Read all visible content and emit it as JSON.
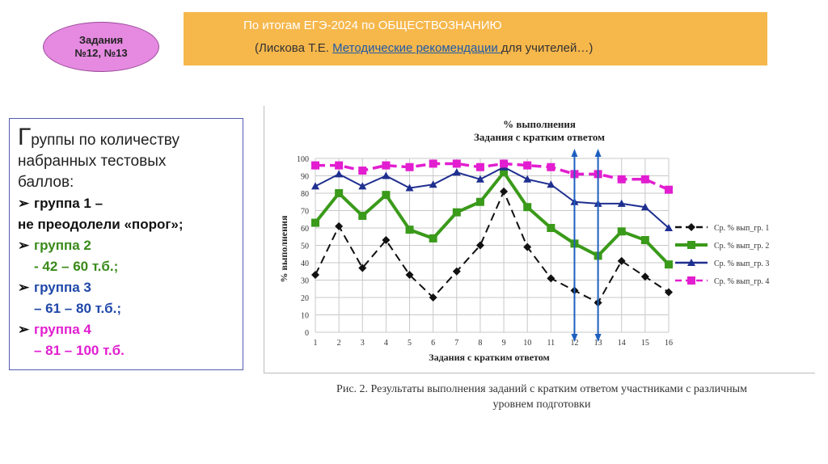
{
  "badge": {
    "line1": "Задания",
    "line2": "№12, №13"
  },
  "banner": {
    "title": "По итогам ЕГЭ-2024 по ОБЩЕСТВОЗНАНИЮ",
    "source_prefix": "(Лискова Т.Е. ",
    "source_link": "Методические рекомендации ",
    "source_suffix": "для учителей…)",
    "color": "#f6b74b"
  },
  "groups": {
    "title_initial": "Г",
    "title_rest": "руппы по количеству",
    "title_line2": "набранных тестовых",
    "title_line3": "баллов:",
    "items": [
      {
        "label": "группа 1 –",
        "detail": "не преодолели «порог»;",
        "color": "#111111"
      },
      {
        "label": "группа 2",
        "detail": "- 42 – 60 т.б.;",
        "color": "#3a8a1a"
      },
      {
        "label": "группа 3",
        "detail": "– 61 – 80 т.б.;",
        "color": "#1f47a8"
      },
      {
        "label": "группа 4",
        "detail": "– 81 – 100 т.б.",
        "color": "#e21ed0"
      }
    ]
  },
  "chart_data": {
    "type": "line",
    "title": "% выполнения",
    "subtitle": "Задания с кратким ответом",
    "xlabel": "Задания с кратким ответом",
    "ylabel": "% выполнения",
    "x": [
      1,
      2,
      3,
      4,
      5,
      6,
      7,
      8,
      9,
      10,
      11,
      12,
      13,
      14,
      15,
      16
    ],
    "ylim": [
      0,
      100
    ],
    "yticks": [
      0,
      10,
      20,
      30,
      40,
      50,
      60,
      70,
      80,
      90,
      100
    ],
    "grid": true,
    "legend": "right",
    "series": [
      {
        "name": "Ср. % вып_гр. 1",
        "color": "#111111",
        "dashed": true,
        "marker": "diamond",
        "values": [
          33,
          61,
          37,
          53,
          33,
          20,
          35,
          50,
          81,
          49,
          31,
          24,
          17,
          41,
          32,
          23
        ]
      },
      {
        "name": "Ср. % вып_гр. 2",
        "color": "#3a9a1a",
        "dashed": false,
        "marker": "square",
        "values": [
          63,
          80,
          67,
          79,
          59,
          54,
          69,
          75,
          92,
          72,
          60,
          51,
          44,
          58,
          53,
          39
        ]
      },
      {
        "name": "Ср. % вып_гр. 3",
        "color": "#1f2f90",
        "dashed": false,
        "marker": "triangle",
        "values": [
          84,
          91,
          84,
          90,
          83,
          85,
          92,
          88,
          95,
          88,
          85,
          75,
          74,
          74,
          72,
          60
        ]
      },
      {
        "name": "Ср. % вып_гр. 4",
        "color": "#e21ed0",
        "dashed": true,
        "marker": "square",
        "values": [
          96,
          96,
          93,
          96,
          95,
          97,
          97,
          95,
          97,
          96,
          95,
          91,
          91,
          88,
          88,
          82
        ]
      }
    ],
    "highlight_tasks": [
      12,
      13
    ],
    "highlight_color": "#1f5fbf"
  },
  "caption": {
    "line1": "Рис. 2. Результаты выполнения заданий с кратким ответом участниками с различным",
    "line2": "уровнем подготовки"
  }
}
